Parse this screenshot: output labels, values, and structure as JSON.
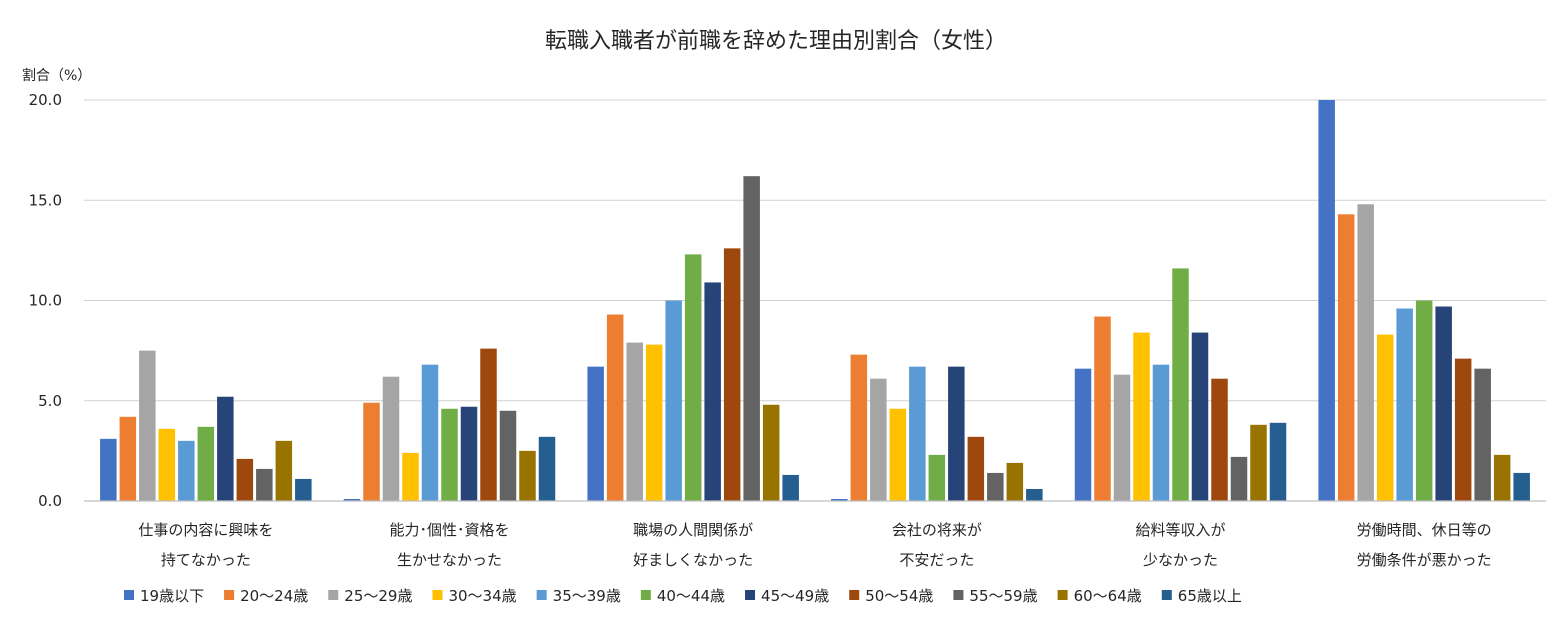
{
  "chart_data": {
    "type": "bar",
    "title": "転職入職者が前職を辞めた理由別割合（女性）",
    "ylabel": "割合（%）",
    "ylim": [
      0,
      20
    ],
    "yticks": [
      "0.0",
      "5.0",
      "10.0",
      "15.0",
      "20.0"
    ],
    "grid": true,
    "legend_position": "bottom",
    "categories": [
      [
        "仕事の内容に興味を",
        "持てなかった"
      ],
      [
        "能力･個性･資格を",
        "生かせなかった"
      ],
      [
        "職場の人間関係が",
        "好ましくなかった"
      ],
      [
        "会社の将来が",
        "不安だった"
      ],
      [
        "給料等収入が",
        "少なかった"
      ],
      [
        "労働時間、休日等の",
        "労働条件が悪かった"
      ]
    ],
    "series": [
      {
        "name": "19歳以下",
        "color": "#4472C4",
        "values": [
          3.1,
          0.1,
          6.7,
          0.1,
          6.6,
          20.0
        ]
      },
      {
        "name": "20～24歳",
        "color": "#ED7D31",
        "values": [
          4.2,
          4.9,
          9.3,
          7.3,
          9.2,
          14.3
        ]
      },
      {
        "name": "25～29歳",
        "color": "#A5A5A5",
        "values": [
          7.5,
          6.2,
          7.9,
          6.1,
          6.3,
          14.8
        ]
      },
      {
        "name": "30～34歳",
        "color": "#FFC000",
        "values": [
          3.6,
          2.4,
          7.8,
          4.6,
          8.4,
          8.3
        ]
      },
      {
        "name": "35～39歳",
        "color": "#5B9BD5",
        "values": [
          3.0,
          6.8,
          10.0,
          6.7,
          6.8,
          9.6
        ]
      },
      {
        "name": "40～44歳",
        "color": "#70AD47",
        "values": [
          3.7,
          4.6,
          12.3,
          2.3,
          11.6,
          10.0
        ]
      },
      {
        "name": "45～49歳",
        "color": "#264478",
        "values": [
          5.2,
          4.7,
          10.9,
          6.7,
          8.4,
          9.7
        ]
      },
      {
        "name": "50～54歳",
        "color": "#9E480E",
        "values": [
          2.1,
          7.6,
          12.6,
          3.2,
          6.1,
          7.1
        ]
      },
      {
        "name": "55～59歳",
        "color": "#636363",
        "values": [
          1.6,
          4.5,
          16.2,
          1.4,
          2.2,
          6.6
        ]
      },
      {
        "name": "60～64歳",
        "color": "#997300",
        "values": [
          3.0,
          2.5,
          4.8,
          1.9,
          3.8,
          2.3
        ]
      },
      {
        "name": "65歳以上",
        "color": "#255E91",
        "values": [
          1.1,
          3.2,
          1.3,
          0.6,
          3.9,
          1.4
        ]
      }
    ]
  }
}
